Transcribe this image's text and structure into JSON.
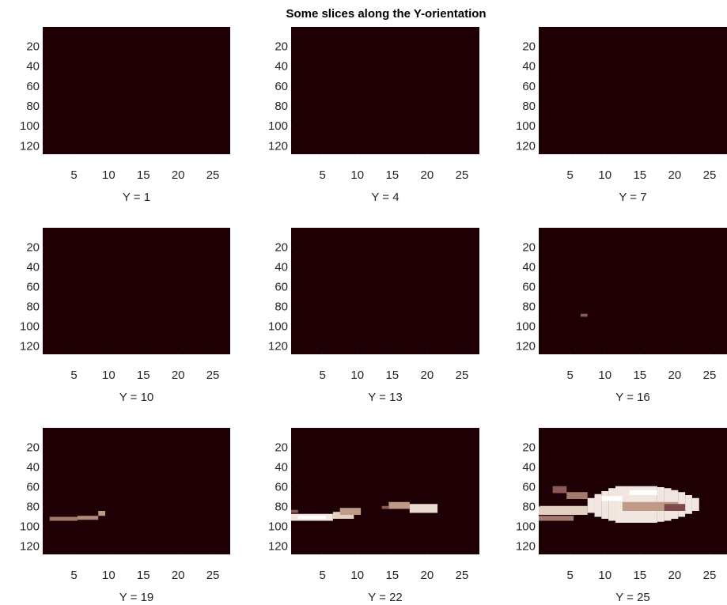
{
  "title": "Some slices along the Y-orientation",
  "chart_data": [
    {
      "type": "image",
      "xlabel": "Y = 1",
      "xlim": [
        0.5,
        27.5
      ],
      "ylim": [
        0.5,
        128.5
      ],
      "ydir": "reverse",
      "xticks": [
        5,
        10,
        15,
        20,
        25
      ],
      "yticks": [
        20,
        40,
        60,
        80,
        100,
        120
      ],
      "colormap": [
        "#1e0004",
        "#7a4444",
        "#d0b098",
        "#ffffff"
      ],
      "clim": [
        0,
        1
      ],
      "cells": []
    },
    {
      "type": "image",
      "xlabel": "Y = 4",
      "xlim": [
        0.5,
        27.5
      ],
      "ylim": [
        0.5,
        128.5
      ],
      "ydir": "reverse",
      "xticks": [
        5,
        10,
        15,
        20,
        25
      ],
      "yticks": [
        20,
        40,
        60,
        80,
        100,
        120
      ],
      "colormap": [
        "#1e0004",
        "#7a4444",
        "#d0b098",
        "#ffffff"
      ],
      "clim": [
        0,
        1
      ],
      "cells": []
    },
    {
      "type": "image",
      "xlabel": "Y = 7",
      "xlim": [
        0.5,
        27.5
      ],
      "ylim": [
        0.5,
        128.5
      ],
      "ydir": "reverse",
      "xticks": [
        5,
        10,
        15,
        20,
        25
      ],
      "yticks": [
        20,
        40,
        60,
        80,
        100,
        120
      ],
      "colormap": [
        "#1e0004",
        "#7a4444",
        "#d0b098",
        "#ffffff"
      ],
      "clim": [
        0,
        1
      ],
      "cells": []
    },
    {
      "type": "image",
      "xlabel": "Y = 10",
      "xlim": [
        0.5,
        27.5
      ],
      "ylim": [
        0.5,
        128.5
      ],
      "ydir": "reverse",
      "xticks": [
        5,
        10,
        15,
        20,
        25
      ],
      "yticks": [
        20,
        40,
        60,
        80,
        100,
        120
      ],
      "colormap": [
        "#1e0004",
        "#7a4444",
        "#d0b098",
        "#ffffff"
      ],
      "clim": [
        0,
        1
      ],
      "cells": []
    },
    {
      "type": "image",
      "xlabel": "Y = 13",
      "xlim": [
        0.5,
        27.5
      ],
      "ylim": [
        0.5,
        128.5
      ],
      "ydir": "reverse",
      "xticks": [
        5,
        10,
        15,
        20,
        25
      ],
      "yticks": [
        20,
        40,
        60,
        80,
        100,
        120
      ],
      "colormap": [
        "#1e0004",
        "#7a4444",
        "#d0b098",
        "#ffffff"
      ],
      "clim": [
        0,
        1
      ],
      "cells": []
    },
    {
      "type": "image",
      "xlabel": "Y = 16",
      "xlim": [
        0.5,
        27.5
      ],
      "ylim": [
        0.5,
        128.5
      ],
      "ydir": "reverse",
      "xticks": [
        5,
        10,
        15,
        20,
        25
      ],
      "yticks": [
        20,
        40,
        60,
        80,
        100,
        120
      ],
      "colormap": [
        "#1e0004",
        "#7a4444",
        "#d0b098",
        "#ffffff"
      ],
      "clim": [
        0,
        1
      ],
      "cells": [
        [
          7,
          7,
          88,
          90,
          0.4
        ]
      ]
    },
    {
      "type": "image",
      "xlabel": "Y = 19",
      "xlim": [
        0.5,
        27.5
      ],
      "ylim": [
        0.5,
        128.5
      ],
      "ydir": "reverse",
      "xticks": [
        5,
        10,
        15,
        20,
        25
      ],
      "yticks": [
        20,
        40,
        60,
        80,
        100,
        120
      ],
      "colormap": [
        "#1e0004",
        "#7a4444",
        "#d0b098",
        "#ffffff"
      ],
      "clim": [
        0,
        1
      ],
      "cells": [
        [
          2,
          5,
          91,
          94,
          0.5
        ],
        [
          6,
          8,
          90,
          93,
          0.55
        ],
        [
          9,
          9,
          85,
          89,
          0.6
        ]
      ]
    },
    {
      "type": "image",
      "xlabel": "Y = 22",
      "xlim": [
        0.5,
        27.5
      ],
      "ylim": [
        0.5,
        128.5
      ],
      "ydir": "reverse",
      "xticks": [
        5,
        10,
        15,
        20,
        25
      ],
      "yticks": [
        20,
        40,
        60,
        80,
        100,
        120
      ],
      "colormap": [
        "#1e0004",
        "#7a4444",
        "#d0b098",
        "#ffffff"
      ],
      "clim": [
        0,
        1
      ],
      "cells": [
        [
          1,
          6,
          88,
          94,
          0.9
        ],
        [
          2,
          5,
          90,
          92,
          1
        ],
        [
          7,
          9,
          86,
          92,
          0.8
        ],
        [
          8,
          10,
          82,
          88,
          0.6
        ],
        [
          1,
          1,
          84,
          86,
          0.4
        ],
        [
          15,
          17,
          76,
          82,
          0.6
        ],
        [
          18,
          21,
          78,
          86,
          0.85
        ],
        [
          14,
          14,
          80,
          82,
          0.4
        ]
      ]
    },
    {
      "type": "image",
      "xlabel": "Y = 25",
      "xlim": [
        0.5,
        27.5
      ],
      "ylim": [
        0.5,
        128.5
      ],
      "ydir": "reverse",
      "xticks": [
        5,
        10,
        15,
        20,
        25
      ],
      "yticks": [
        20,
        40,
        60,
        80,
        100,
        120
      ],
      "colormap": [
        "#1e0004",
        "#7a4444",
        "#d0b098",
        "#ffffff"
      ],
      "clim": [
        0,
        1
      ],
      "cells": [
        [
          8,
          8,
          72,
          86,
          0.9
        ],
        [
          9,
          9,
          68,
          90,
          0.9
        ],
        [
          10,
          10,
          65,
          92,
          0.9
        ],
        [
          11,
          11,
          62,
          94,
          0.9
        ],
        [
          12,
          17,
          60,
          96,
          0.9
        ],
        [
          18,
          18,
          61,
          95,
          0.9
        ],
        [
          19,
          19,
          62,
          94,
          0.9
        ],
        [
          20,
          20,
          64,
          92,
          0.9
        ],
        [
          21,
          21,
          66,
          90,
          0.9
        ],
        [
          22,
          22,
          69,
          87,
          0.9
        ],
        [
          23,
          23,
          72,
          84,
          0.9
        ],
        [
          13,
          20,
          76,
          84,
          0.6
        ],
        [
          19,
          21,
          78,
          84,
          0.35
        ],
        [
          1,
          7,
          80,
          88,
          0.8
        ],
        [
          1,
          5,
          90,
          94,
          0.5
        ],
        [
          3,
          4,
          60,
          66,
          0.4
        ],
        [
          5,
          7,
          66,
          72,
          0.5
        ],
        [
          10,
          12,
          70,
          74,
          1
        ],
        [
          14,
          17,
          64,
          68,
          1
        ]
      ]
    }
  ]
}
